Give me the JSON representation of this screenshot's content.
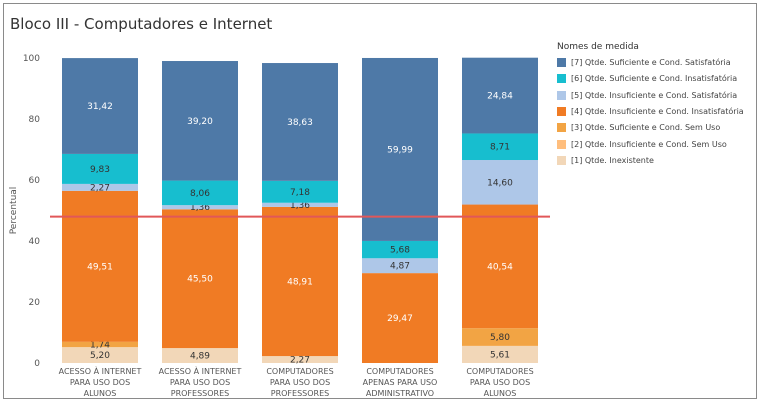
{
  "title": "Bloco III - Computadores e Internet",
  "legend": {
    "title": "Nomes de medida",
    "items": [
      {
        "label": "[7] Qtde. Suficiente e Cond. Satisfatória",
        "color": "#4e79a7"
      },
      {
        "label": "[6] Qtde. Suficiente e Cond. Insatisfatória",
        "color": "#17becf"
      },
      {
        "label": "[5] Qtde. Insuficiente e Cond. Satisfatória",
        "color": "#aec7e8"
      },
      {
        "label": "[4] Qtde. Insuficiente e Cond. Insatisfatória",
        "color": "#f07b24"
      },
      {
        "label": "[3] Qtde. Suficiente e Cond. Sem Uso",
        "color": "#f2a444"
      },
      {
        "label": "[2] Qtde. Insuficiente e Cond. Sem Uso",
        "color": "#ffbe7d"
      },
      {
        "label": "[1] Qtde. Inexistente",
        "color": "#f2d7b8"
      }
    ]
  },
  "chart_data": {
    "type": "bar",
    "stacked": true,
    "ylabel": "Percentual",
    "ylim": [
      0,
      100
    ],
    "yticks": [
      0,
      20,
      40,
      60,
      80,
      100
    ],
    "reference_line": {
      "value": 48,
      "color": "#e15759"
    },
    "categories": [
      [
        "ACESSO À INTERNET",
        "PARA USO DOS",
        "ALUNOS"
      ],
      [
        "ACESSO À INTERNET",
        "PARA USO DOS",
        "PROFESSORES"
      ],
      [
        "COMPUTADORES",
        "PARA USO DOS",
        "PROFESSORES"
      ],
      [
        "COMPUTADORES",
        "APENAS PARA USO",
        "ADMINISTRATIVO"
      ],
      [
        "COMPUTADORES",
        "PARA USO DOS",
        "ALUNOS"
      ]
    ],
    "series": [
      {
        "name": "[1] Qtde. Inexistente",
        "color": "#f2d7b8",
        "values": [
          5.2,
          4.89,
          2.27,
          0,
          5.61
        ],
        "labels": [
          "5,20",
          "4,89",
          "2,27",
          "",
          "5,61"
        ]
      },
      {
        "name": "[2] Qtde. Insuficiente e Cond. Sem Uso",
        "color": "#ffbe7d",
        "values": [
          0,
          0,
          0,
          0,
          0
        ],
        "labels": [
          "",
          "",
          "",
          "",
          ""
        ]
      },
      {
        "name": "[3] Qtde. Suficiente e Cond. Sem Uso",
        "color": "#f2a444",
        "values": [
          1.74,
          0,
          0,
          0,
          5.8
        ],
        "labels": [
          "1,74",
          "",
          "",
          "",
          "5,80"
        ]
      },
      {
        "name": "[4] Qtde. Insuficiente e Cond. Insatisfatória",
        "color": "#f07b24",
        "values": [
          49.51,
          45.5,
          48.91,
          29.47,
          40.54
        ],
        "labels": [
          "49,51",
          "45,50",
          "48,91",
          "29,47",
          "40,54"
        ]
      },
      {
        "name": "[5] Qtde. Insuficiente e Cond. Satisfatória",
        "color": "#aec7e8",
        "values": [
          2.27,
          1.36,
          1.36,
          4.87,
          14.6
        ],
        "labels": [
          "2,27",
          "1,36",
          "1,36",
          "4,87",
          "14,60"
        ]
      },
      {
        "name": "[6] Qtde. Suficiente e Cond. Insatisfatória",
        "color": "#17becf",
        "values": [
          9.83,
          8.06,
          7.18,
          5.68,
          8.71
        ],
        "labels": [
          "9,83",
          "8,06",
          "7,18",
          "5,68",
          "8,71"
        ]
      },
      {
        "name": "[7] Qtde. Suficiente e Cond. Satisfatória",
        "color": "#4e79a7",
        "values": [
          31.42,
          39.2,
          38.63,
          59.99,
          24.84
        ],
        "labels": [
          "31,42",
          "39,20",
          "38,63",
          "59,99",
          "24,84"
        ]
      }
    ]
  }
}
